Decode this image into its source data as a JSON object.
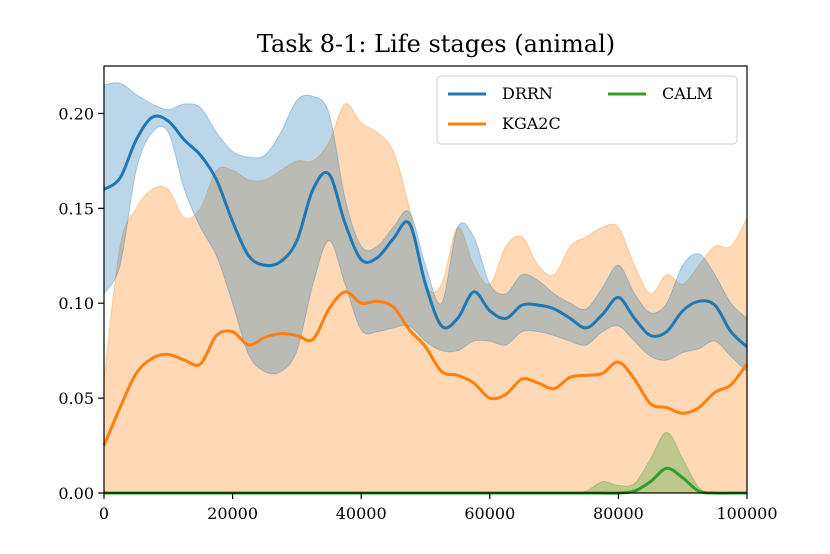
{
  "chart_data": {
    "type": "line",
    "title": "Task 8-1: Life stages (animal)",
    "xlabel": "",
    "ylabel": "",
    "xlim": [
      0,
      100000
    ],
    "ylim": [
      0,
      0.225
    ],
    "x_ticks": [
      0,
      20000,
      40000,
      60000,
      80000,
      100000
    ],
    "x_tick_labels": [
      "0",
      "20000",
      "40000",
      "60000",
      "80000",
      "100000"
    ],
    "y_ticks": [
      0.0,
      0.05,
      0.1,
      0.15,
      0.2
    ],
    "y_tick_labels": [
      "0.00",
      "0.05",
      "0.10",
      "0.15",
      "0.20"
    ],
    "grid": false,
    "legend_position": "top-right",
    "x": [
      0,
      2500,
      5000,
      7500,
      10000,
      12500,
      15000,
      17500,
      20000,
      22500,
      25000,
      27500,
      30000,
      32500,
      35000,
      37500,
      40000,
      42500,
      45000,
      47500,
      50000,
      52500,
      55000,
      57500,
      60000,
      62500,
      65000,
      67500,
      70000,
      72500,
      75000,
      77500,
      80000,
      82500,
      85000,
      87500,
      90000,
      92500,
      95000,
      97500,
      100000
    ],
    "series": [
      {
        "name": "DRRN",
        "color": "#1f77b4",
        "values": [
          0.16,
          0.166,
          0.186,
          0.198,
          0.196,
          0.186,
          0.178,
          0.165,
          0.143,
          0.125,
          0.12,
          0.122,
          0.133,
          0.16,
          0.168,
          0.142,
          0.123,
          0.124,
          0.134,
          0.142,
          0.11,
          0.088,
          0.092,
          0.106,
          0.096,
          0.092,
          0.099,
          0.099,
          0.097,
          0.092,
          0.087,
          0.094,
          0.103,
          0.092,
          0.083,
          0.085,
          0.096,
          0.101,
          0.099,
          0.085,
          0.077
        ],
        "upper": [
          0.215,
          0.216,
          0.21,
          0.205,
          0.202,
          0.205,
          0.203,
          0.19,
          0.18,
          0.177,
          0.178,
          0.19,
          0.207,
          0.209,
          0.2,
          0.155,
          0.13,
          0.13,
          0.14,
          0.148,
          0.12,
          0.1,
          0.14,
          0.135,
          0.11,
          0.105,
          0.115,
          0.112,
          0.105,
          0.1,
          0.097,
          0.108,
          0.12,
          0.105,
          0.095,
          0.1,
          0.12,
          0.126,
          0.115,
          0.1,
          0.092
        ],
        "lower": [
          0.105,
          0.12,
          0.17,
          0.19,
          0.19,
          0.16,
          0.14,
          0.125,
          0.1,
          0.073,
          0.064,
          0.064,
          0.075,
          0.11,
          0.133,
          0.11,
          0.086,
          0.085,
          0.087,
          0.088,
          0.08,
          0.075,
          0.075,
          0.08,
          0.08,
          0.078,
          0.085,
          0.085,
          0.083,
          0.08,
          0.078,
          0.085,
          0.088,
          0.08,
          0.072,
          0.07,
          0.074,
          0.076,
          0.08,
          0.072,
          0.064
        ]
      },
      {
        "name": "KGA2C",
        "color": "#ff7f0e",
        "values": [
          0.025,
          0.045,
          0.063,
          0.071,
          0.073,
          0.07,
          0.068,
          0.083,
          0.085,
          0.078,
          0.082,
          0.084,
          0.083,
          0.081,
          0.097,
          0.106,
          0.1,
          0.101,
          0.098,
          0.086,
          0.077,
          0.064,
          0.062,
          0.058,
          0.05,
          0.052,
          0.06,
          0.058,
          0.055,
          0.061,
          0.062,
          0.063,
          0.069,
          0.06,
          0.047,
          0.045,
          0.042,
          0.045,
          0.053,
          0.057,
          0.068
        ],
        "upper": [
          0.06,
          0.13,
          0.15,
          0.16,
          0.16,
          0.145,
          0.15,
          0.17,
          0.17,
          0.165,
          0.165,
          0.17,
          0.175,
          0.175,
          0.185,
          0.205,
          0.195,
          0.19,
          0.18,
          0.15,
          0.11,
          0.11,
          0.14,
          0.12,
          0.11,
          0.13,
          0.135,
          0.12,
          0.115,
          0.13,
          0.135,
          0.14,
          0.14,
          0.12,
          0.105,
          0.115,
          0.11,
          0.12,
          0.13,
          0.13,
          0.145
        ],
        "lower": [
          0.0,
          0.0,
          0.0,
          0.0,
          0.0,
          0.0,
          0.0,
          0.0,
          0.0,
          0.0,
          0.0,
          0.0,
          0.0,
          0.0,
          0.0,
          0.0,
          0.0,
          0.0,
          0.0,
          0.0,
          0.0,
          0.0,
          0.0,
          0.0,
          0.0,
          0.0,
          0.0,
          0.0,
          0.0,
          0.0,
          0.0,
          0.0,
          0.0,
          0.0,
          0.0,
          0.0,
          0.0,
          0.0,
          0.0,
          0.0,
          0.0
        ]
      },
      {
        "name": "CALM",
        "color": "#2ca02c",
        "values": [
          0,
          0,
          0,
          0,
          0,
          0,
          0,
          0,
          0,
          0,
          0,
          0,
          0,
          0,
          0,
          0,
          0,
          0,
          0,
          0,
          0,
          0,
          0,
          0,
          0,
          0,
          0,
          0,
          0,
          0,
          0,
          0,
          0,
          0.001,
          0.006,
          0.013,
          0.008,
          0.001,
          0,
          0,
          0
        ],
        "upper": [
          0,
          0,
          0,
          0,
          0,
          0,
          0,
          0,
          0,
          0,
          0,
          0,
          0,
          0,
          0,
          0,
          0,
          0,
          0,
          0,
          0,
          0,
          0,
          0,
          0,
          0,
          0,
          0,
          0,
          0,
          0.001,
          0.006,
          0.004,
          0.005,
          0.018,
          0.032,
          0.018,
          0.003,
          0,
          0,
          0
        ],
        "lower": [
          0,
          0,
          0,
          0,
          0,
          0,
          0,
          0,
          0,
          0,
          0,
          0,
          0,
          0,
          0,
          0,
          0,
          0,
          0,
          0,
          0,
          0,
          0,
          0,
          0,
          0,
          0,
          0,
          0,
          0,
          0,
          0,
          0,
          0,
          0,
          0,
          0,
          0,
          0,
          0,
          0
        ]
      }
    ]
  }
}
